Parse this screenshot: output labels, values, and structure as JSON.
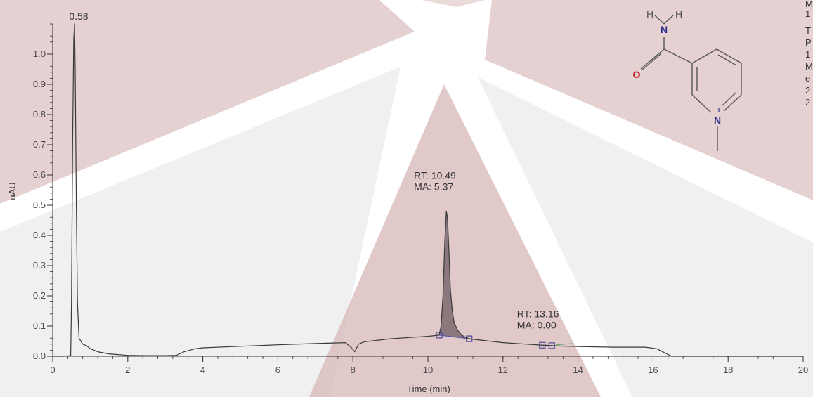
{
  "chart_data": {
    "type": "line",
    "title": "",
    "xlabel": "Time (min)",
    "ylabel": "uAU",
    "xlim": [
      0,
      20
    ],
    "ylim": [
      0,
      1.1
    ],
    "x_major_ticks": [
      0,
      2,
      4,
      6,
      8,
      10,
      12,
      14,
      16,
      18,
      20
    ],
    "y_major_ticks": [
      0.0,
      0.1,
      0.2,
      0.3,
      0.4,
      0.5,
      0.6,
      0.7,
      0.8,
      0.9,
      1.0
    ],
    "x_tick_labels": [
      "0",
      "2",
      "4",
      "6",
      "8",
      "10",
      "12",
      "14",
      "16",
      "18",
      "20"
    ],
    "y_tick_labels": [
      "0.0",
      "0.1",
      "0.2",
      "0.3",
      "0.4",
      "0.5",
      "0.6",
      "0.7",
      "0.8",
      "0.9",
      "1.0"
    ],
    "grid": false,
    "line_color": "#3a3a3a",
    "series": [
      {
        "x": [
          0,
          0.3,
          0.48,
          0.5,
          0.53,
          0.56,
          0.58,
          0.6,
          0.63,
          0.66,
          0.7,
          0.8,
          0.9,
          1.0,
          1.2,
          1.5,
          2.0,
          2.5,
          3.0,
          3.3,
          3.5,
          3.8,
          4.0,
          5.0,
          6.0,
          7.0,
          7.8,
          7.95,
          8.05,
          8.15,
          8.3,
          8.6,
          9.0,
          9.5,
          10.0,
          10.3,
          10.35,
          10.4,
          10.45,
          10.49,
          10.52,
          10.56,
          10.6,
          10.65,
          10.7,
          10.8,
          10.9,
          11.0,
          11.1,
          11.5,
          12.0,
          13.0,
          13.16,
          13.5,
          14.0,
          15.0,
          15.8,
          16.1,
          16.3,
          16.5,
          17.0,
          18.0,
          19.0,
          20.0
        ],
        "y": [
          0.0,
          0.0,
          0.002,
          0.18,
          0.7,
          1.05,
          1.1,
          0.95,
          0.5,
          0.18,
          0.06,
          0.04,
          0.035,
          0.025,
          0.015,
          0.008,
          0.003,
          0.002,
          0.002,
          0.003,
          0.015,
          0.025,
          0.028,
          0.033,
          0.038,
          0.042,
          0.045,
          0.03,
          0.015,
          0.04,
          0.048,
          0.052,
          0.058,
          0.062,
          0.066,
          0.07,
          0.1,
          0.2,
          0.38,
          0.48,
          0.46,
          0.35,
          0.22,
          0.15,
          0.11,
          0.085,
          0.07,
          0.063,
          0.058,
          0.052,
          0.045,
          0.037,
          0.036,
          0.034,
          0.032,
          0.03,
          0.03,
          0.025,
          0.012,
          0.0,
          0.0,
          0.0,
          0.0,
          0.0
        ]
      }
    ],
    "peaks": [
      {
        "x": 0.58,
        "y": 1.1,
        "label": "0.58",
        "shaded": false
      },
      {
        "x": 10.49,
        "y": 0.48,
        "label_lines": [
          "RT: 10.49",
          "MA: 5.37"
        ],
        "shaded": true,
        "integration_start": 10.3,
        "integration_end": 11.1
      },
      {
        "x": 13.16,
        "y": 0.036,
        "label_lines": [
          "RT: 13.16",
          "MA: 0.00"
        ],
        "shaded": false,
        "integration_start": 13.05,
        "integration_end": 13.3
      }
    ],
    "colors": {
      "trace": "#3a3a3a",
      "peak_fill": "#7a6a6e",
      "baseline": "#5a5aa8",
      "marker": "#4a4a9a",
      "watermark": "#d9bcbc"
    }
  },
  "structure": {
    "atoms": {
      "n_amide": "N",
      "h_left": "H",
      "h_right": "H",
      "o": "O",
      "n_ring": "N",
      "charge": "+"
    },
    "colors": {
      "nitrogen": "#2b2b8a",
      "oxygen": "#c01c1c",
      "hydrogen": "#555555",
      "bond": "#555555"
    }
  },
  "side_text": {
    "lines": [
      "M",
      "1",
      "",
      "T",
      "P",
      "1",
      "M",
      "e",
      "2",
      "2"
    ]
  }
}
